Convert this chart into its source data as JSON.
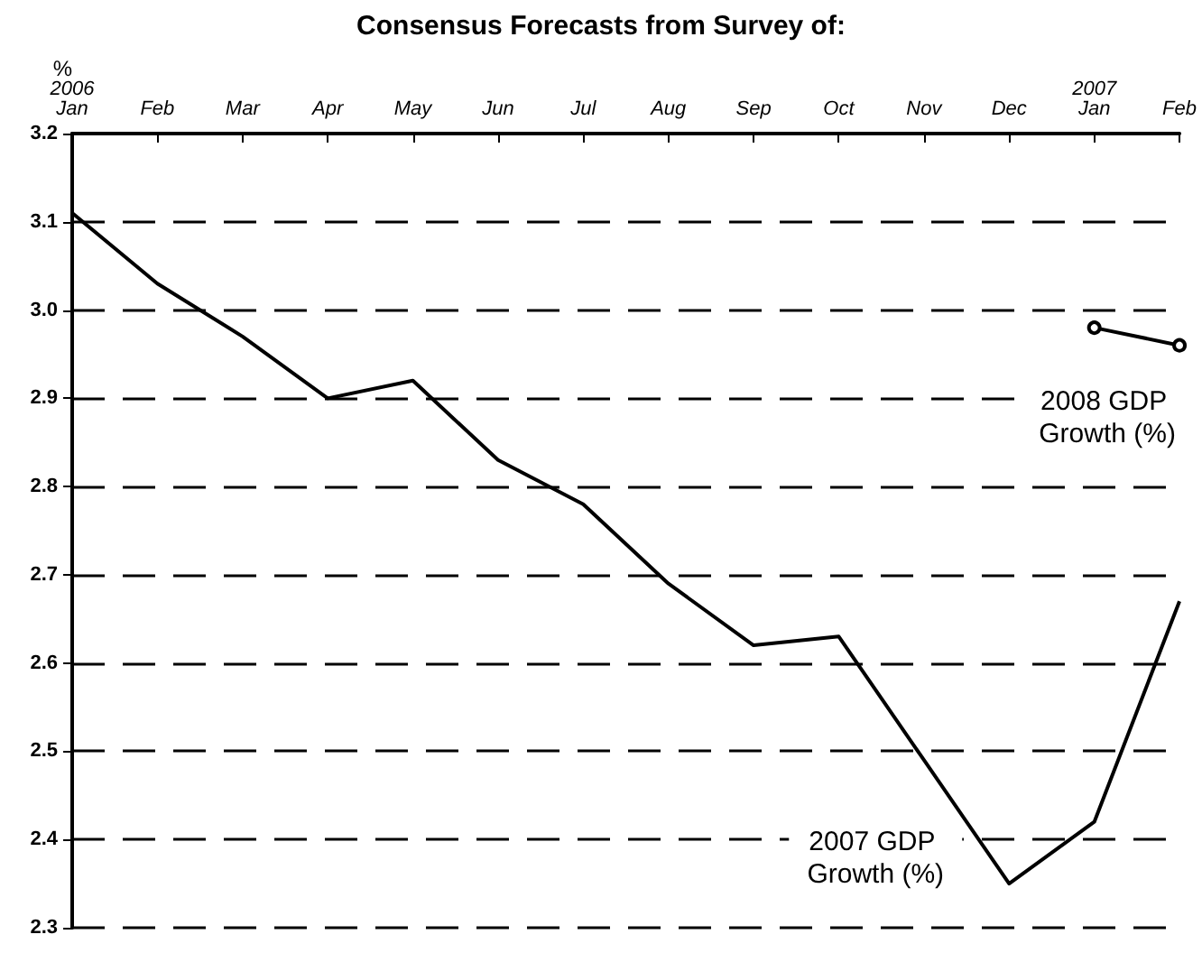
{
  "chart_data": {
    "type": "line",
    "title": "Consensus Forecasts from Survey of:",
    "ylabel": "%",
    "categories": [
      "2006\nJan",
      "Feb",
      "Mar",
      "Apr",
      "May",
      "Jun",
      "Jul",
      "Aug",
      "Sep",
      "Oct",
      "Nov",
      "Dec",
      "2007\nJan",
      "Feb"
    ],
    "series": [
      {
        "name": "2007 GDP Growth (%)",
        "color": "#000000",
        "marker": "none",
        "values": [
          3.11,
          3.03,
          2.97,
          2.9,
          2.92,
          2.83,
          2.78,
          2.69,
          2.62,
          2.63,
          2.49,
          2.35,
          2.42,
          2.67
        ]
      },
      {
        "name": "2008 GDP Growth (%)",
        "color": "#000000",
        "marker": "circle",
        "values": [
          null,
          null,
          null,
          null,
          null,
          null,
          null,
          null,
          null,
          null,
          null,
          null,
          2.98,
          2.96
        ]
      }
    ],
    "ylim": [
      2.3,
      3.2
    ],
    "yticks": [
      2.3,
      2.4,
      2.5,
      2.6,
      2.7,
      2.8,
      2.9,
      {
        "value": 3,
        "label": "3.0"
      },
      3.1,
      3.2
    ],
    "grid": "y",
    "line_style": "solid",
    "legend": false
  }
}
